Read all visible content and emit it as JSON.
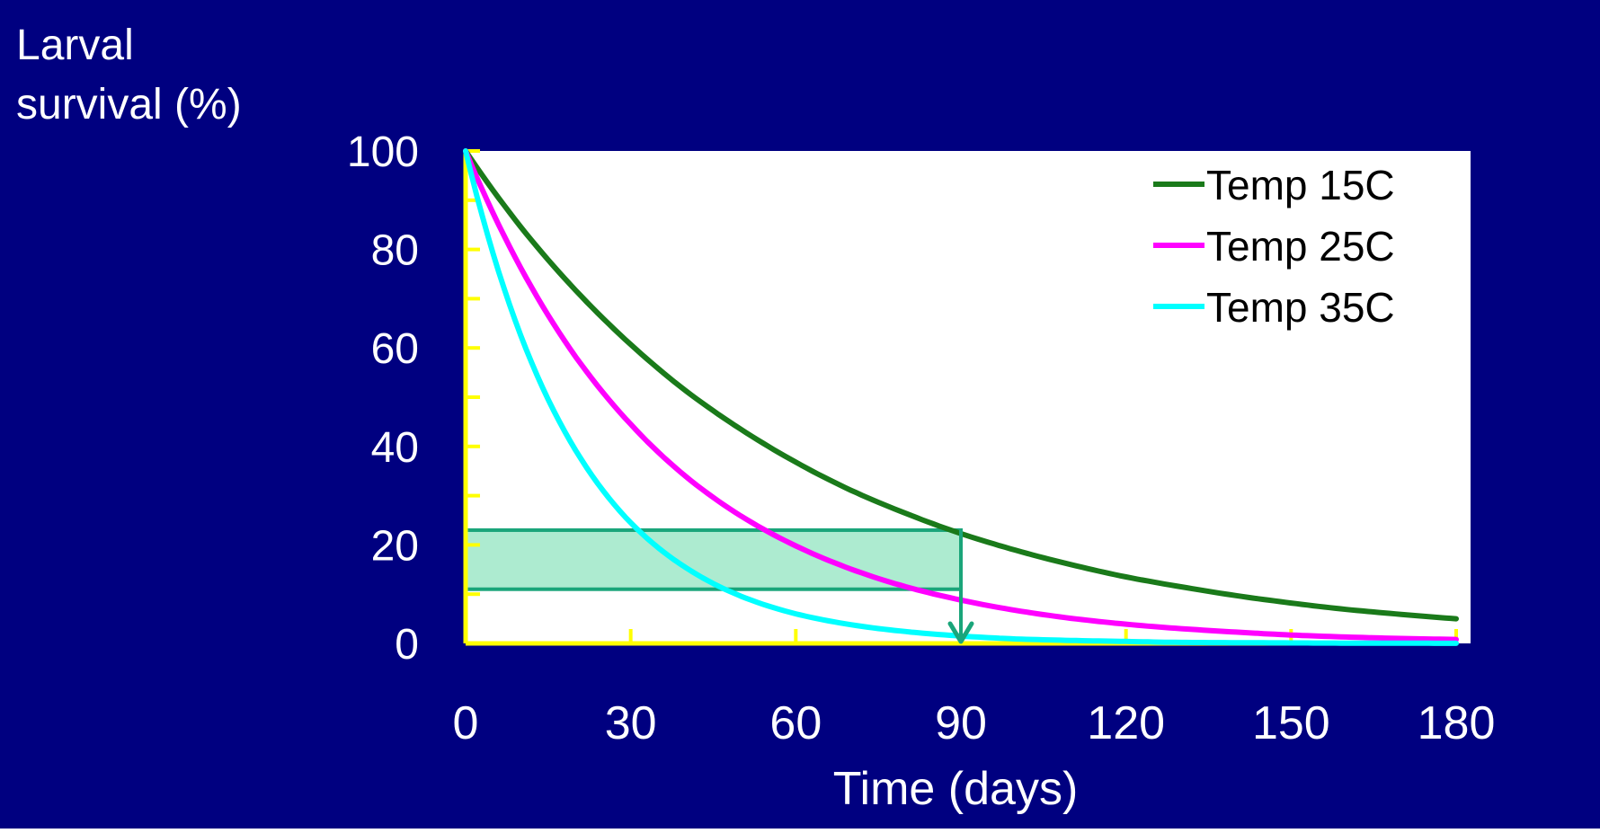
{
  "chart_data": {
    "type": "line",
    "ylabel_lines": [
      "Larval",
      "survival (%)"
    ],
    "xlabel": "Time (days)",
    "xlim": [
      0,
      180
    ],
    "ylim": [
      0,
      100
    ],
    "x_ticks": [
      0,
      30,
      60,
      90,
      120,
      150,
      180
    ],
    "y_ticks": [
      0,
      20,
      40,
      60,
      80,
      100
    ],
    "grid": false,
    "legend_position": "top-right",
    "x": [
      0,
      10,
      20,
      30,
      40,
      50,
      60,
      70,
      80,
      90,
      100,
      110,
      120,
      130,
      140,
      150,
      160,
      170,
      180
    ],
    "series": [
      {
        "name": "Temp 15C",
        "color": "#1a7a1a",
        "values": [
          100,
          84.6,
          71.7,
          60.7,
          51.3,
          43.5,
          36.8,
          31.1,
          26.4,
          22.3,
          18.9,
          16.0,
          13.5,
          11.5,
          9.7,
          8.2,
          6.9,
          5.9,
          5.0
        ]
      },
      {
        "name": "Temp 25C",
        "color": "#ff00ff",
        "values": [
          100,
          76.3,
          58.2,
          44.5,
          33.9,
          25.9,
          19.8,
          15.1,
          11.5,
          8.8,
          6.7,
          5.1,
          3.9,
          3.0,
          2.3,
          1.7,
          1.3,
          1.0,
          0.8
        ]
      },
      {
        "name": "Temp 35C",
        "color": "#00ffff",
        "values": [
          100,
          62.6,
          39.2,
          24.5,
          15.4,
          9.6,
          6.0,
          3.8,
          2.4,
          1.5,
          0.9,
          0.6,
          0.4,
          0.2,
          0.15,
          0.1,
          0.06,
          0.04,
          0.02
        ]
      }
    ],
    "highlight": {
      "x_range": [
        0,
        90
      ],
      "y_range": [
        11,
        23
      ],
      "fill_color": "#9fe8c8",
      "border_color": "#1aa57a",
      "arrow_x": 90,
      "arrow_from_y": 23,
      "arrow_to_y": 0
    },
    "colors": {
      "background": "#000080",
      "plot_area": "#ffffff",
      "axis": "#ffff00",
      "text": "#ffffff",
      "legend_text": "#000000"
    }
  }
}
